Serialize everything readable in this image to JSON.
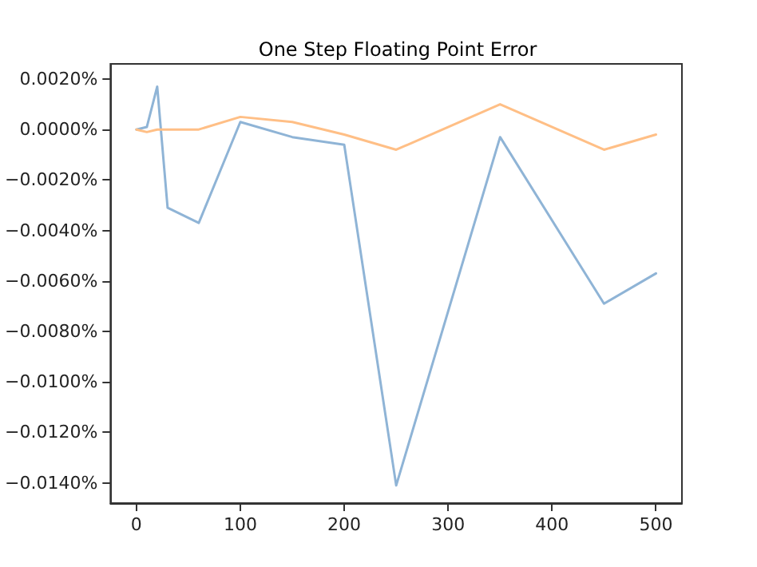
{
  "chart_data": {
    "type": "line",
    "title": "One Step Floating Point Error",
    "series": [
      {
        "color": "#8fb4d6",
        "x": [
          0,
          10,
          20,
          30,
          60,
          100,
          150,
          200,
          250,
          350,
          450,
          500
        ],
        "values": [
          0,
          0.0001,
          0.0017,
          -0.0031,
          -0.0037,
          0.0003,
          -0.0003,
          -0.0006,
          -0.0141,
          -0.0003,
          -0.0069,
          -0.0057
        ]
      },
      {
        "color": "#ffbf86",
        "x": [
          0,
          10,
          20,
          60,
          100,
          150,
          200,
          250,
          350,
          450,
          500
        ],
        "values": [
          0,
          -0.0001,
          0,
          0,
          0.0005,
          0.0003,
          -0.0002,
          -0.0008,
          0.001,
          -0.0008,
          -0.0002
        ]
      }
    ],
    "xlim": [
      -25,
      525
    ],
    "xticks": [
      0,
      100,
      200,
      300,
      400,
      500
    ],
    "ylim": [
      -0.0148,
      0.0026
    ],
    "yticks": [
      {
        "value": 0.002,
        "label": "0.0020%"
      },
      {
        "value": 0,
        "label": "0.0000%"
      },
      {
        "value": -0.002,
        "label": "−0.0020%"
      },
      {
        "value": -0.004,
        "label": "−0.0040%"
      },
      {
        "value": -0.006,
        "label": "−0.0060%"
      },
      {
        "value": -0.008,
        "label": "−0.0080%"
      },
      {
        "value": -0.01,
        "label": "−0.0100%"
      },
      {
        "value": -0.012,
        "label": "−0.0120%"
      },
      {
        "value": -0.014,
        "label": "−0.0140%"
      }
    ],
    "grid": false,
    "marker": "none",
    "line_style": "solid"
  }
}
